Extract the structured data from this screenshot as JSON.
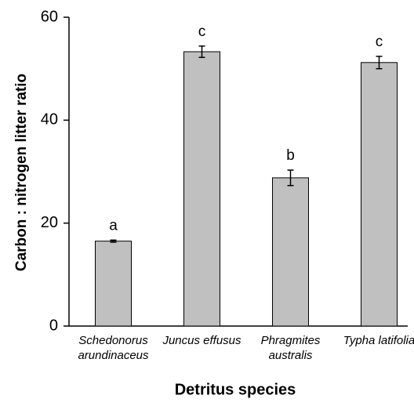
{
  "chart_data": {
    "type": "bar",
    "xlabel": "Detritus species",
    "ylabel": "Carbon : nitrogen litter ratio",
    "categories": [
      "Schedonorus arundinaceus",
      "Juncus effusus",
      "Phragmites australis",
      "Typha latifolia"
    ],
    "values": [
      16.5,
      53.3,
      28.8,
      51.2
    ],
    "errors": [
      0.2,
      1.1,
      1.5,
      1.2
    ],
    "annotations": [
      "a",
      "c",
      "b",
      "c"
    ],
    "color": "#c0c0c0",
    "ylim": [
      0,
      60
    ],
    "yticks": [
      0,
      20,
      40,
      60
    ],
    "grid": false
  }
}
